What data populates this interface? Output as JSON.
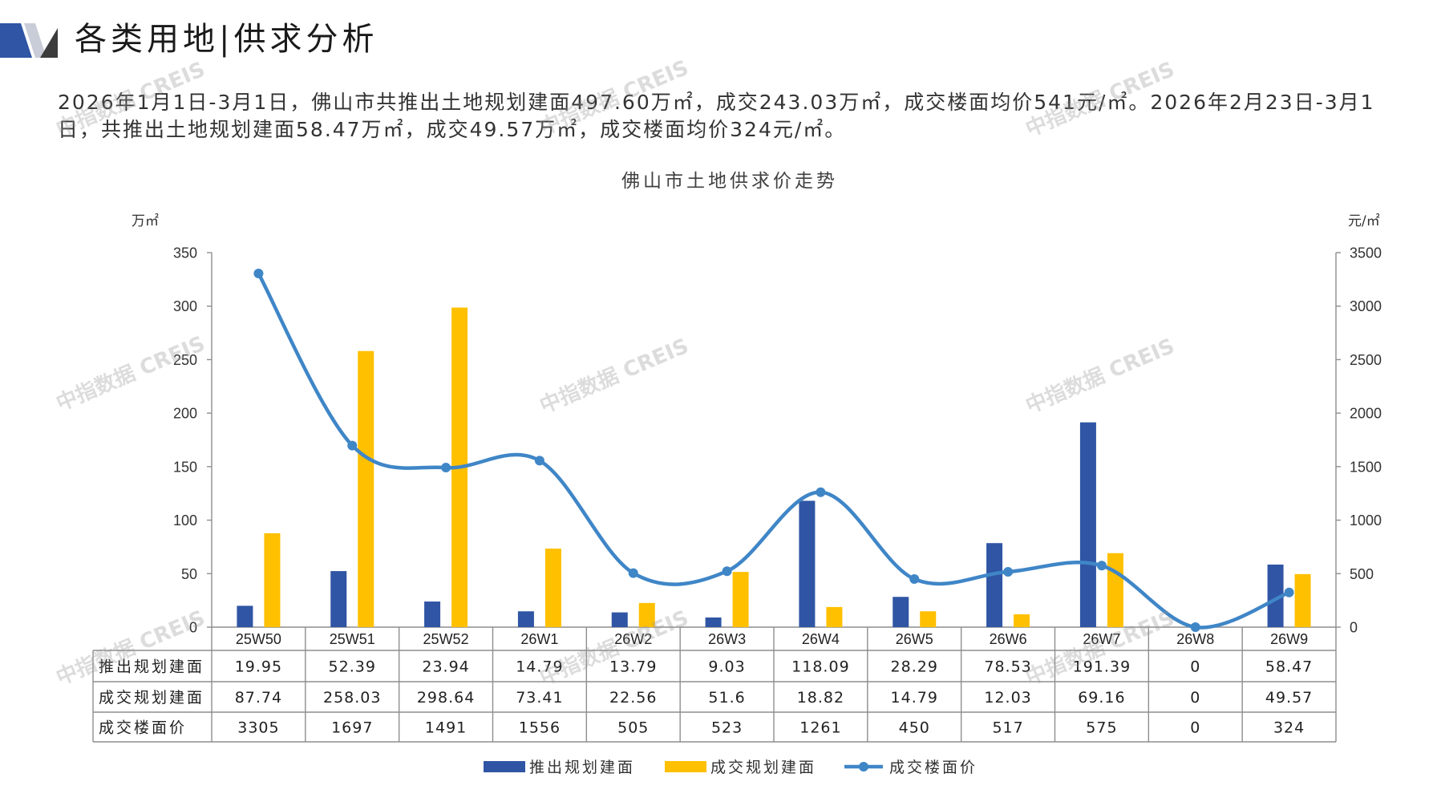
{
  "header": {
    "title": "各类用地|供求分析"
  },
  "summary": "2026年1月1日-3月1日，佛山市共推出土地规划建面497.60万㎡，成交243.03万㎡，成交楼面均价541元/㎡。2026年2月23日-3月1日，共推出土地规划建面58.47万㎡，成交49.57万㎡，成交楼面均价324元/㎡。",
  "watermark": "中指数据 CREIS",
  "logo": {
    "icon": "brand-logo-icon",
    "colors": [
      "#2f55a4",
      "#c9cdd8",
      "#3c3c3c"
    ]
  },
  "chart_data": {
    "type": "bar",
    "title": "佛山市土地供求价走势",
    "categories": [
      "25W50",
      "25W51",
      "25W52",
      "26W1",
      "26W2",
      "26W3",
      "26W4",
      "26W5",
      "26W6",
      "26W7",
      "26W8",
      "26W9"
    ],
    "y_left": {
      "label": "万㎡",
      "range": [
        0,
        350
      ],
      "ticks": [
        0,
        50,
        100,
        150,
        200,
        250,
        300,
        350
      ]
    },
    "y_right": {
      "label": "元/㎡",
      "range": [
        0,
        3500
      ],
      "ticks": [
        0,
        500,
        1000,
        1500,
        2000,
        2500,
        3000,
        3500
      ]
    },
    "grid": false,
    "legend": "bottom",
    "data_table": true,
    "series": [
      {
        "name": "推出规划建面",
        "type": "bar",
        "axis": "left",
        "color": "#2f55a4",
        "values": [
          19.95,
          52.39,
          23.94,
          14.79,
          13.79,
          9.03,
          118.09,
          28.29,
          78.53,
          191.39,
          0,
          58.47
        ]
      },
      {
        "name": "成交规划建面",
        "type": "bar",
        "axis": "left",
        "color": "#ffc000",
        "values": [
          87.74,
          258.03,
          298.64,
          73.41,
          22.56,
          51.6,
          18.82,
          14.79,
          12.03,
          69.16,
          0,
          49.57
        ]
      },
      {
        "name": "成交楼面价",
        "type": "line",
        "axis": "right",
        "smooth": true,
        "marker": "circle",
        "color": "#3f86c7",
        "values": [
          3305,
          1697,
          1491,
          1556,
          505,
          523,
          1261,
          450,
          517,
          575,
          0,
          324
        ]
      }
    ]
  }
}
